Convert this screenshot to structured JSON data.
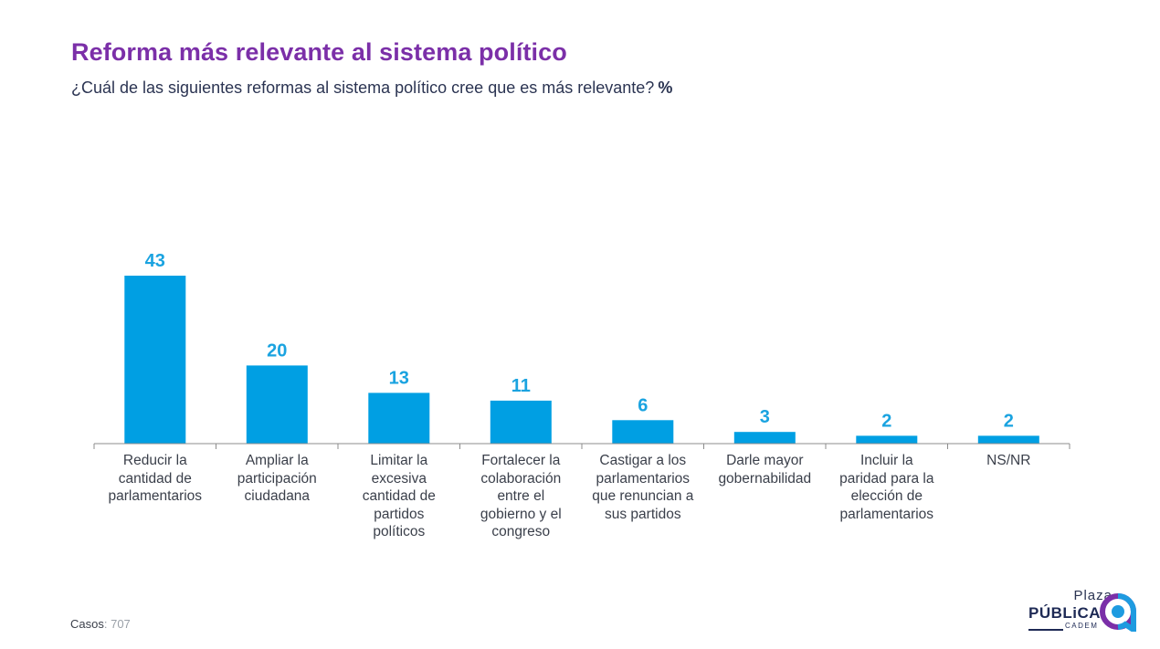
{
  "header": {
    "title": "Reforma más relevante al sistema político",
    "subtitle": "¿Cuál de las siguientes reformas al sistema político cree que es más relevante?",
    "unit": "%"
  },
  "chart_data": {
    "type": "bar",
    "title": "Reforma más relevante al sistema político",
    "subtitle": "¿Cuál de las siguientes reformas al sistema político cree que es más relevante?",
    "unit": "%",
    "categories": [
      "Reducir la cantidad de parlamentarios",
      "Ampliar la participación ciudadana",
      "Limitar la excesiva cantidad de partidos políticos",
      "Fortalecer la colaboración entre el gobierno y el congreso",
      "Castigar a los parlamentarios que renuncian a sus partidos",
      "Darle mayor gobernabilidad",
      "Incluir la paridad para la elección de parlamentarios",
      "NS/NR"
    ],
    "category_lines": [
      [
        "Reducir la",
        "cantidad de",
        "parlamentarios"
      ],
      [
        "Ampliar la",
        "participación",
        "ciudadana"
      ],
      [
        "Limitar la",
        "excesiva",
        "cantidad de",
        "partidos",
        "políticos"
      ],
      [
        "Fortalecer la",
        "colaboración",
        "entre el",
        "gobierno y el",
        "congreso"
      ],
      [
        "Castigar a los",
        "parlamentarios",
        "que renuncian a",
        "sus partidos"
      ],
      [
        "Darle mayor",
        "gobernabilidad"
      ],
      [
        "Incluir la",
        "paridad para la",
        "elección de",
        "parlamentarios"
      ],
      [
        "NS/NR"
      ]
    ],
    "values": [
      43,
      20,
      13,
      11,
      6,
      3,
      2,
      2
    ],
    "ylim": [
      0,
      43
    ],
    "bar_color": "#009fe3",
    "label_color": "#1aa3e0",
    "grid": false,
    "legend": "none"
  },
  "footer": {
    "casos_label": "Casos",
    "casos_value": ": 707"
  },
  "logo": {
    "line1": "Plaza",
    "line2": "PÚBLiCA",
    "line3": "CADEM"
  },
  "colors": {
    "title": "#7b2fa8",
    "subtitle": "#2b3452",
    "bar": "#009fe3",
    "logo_blue": "#1e9be0",
    "logo_purple": "#7b2fa8"
  }
}
